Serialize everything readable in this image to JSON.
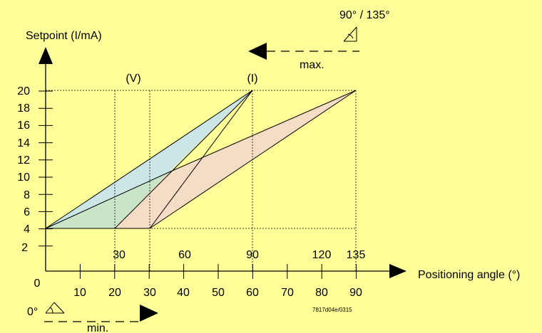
{
  "labels": {
    "y_axis": "Setpoint (I/mA)",
    "x_axis": "Positioning angle (°)",
    "v_marker": "(V)",
    "i_marker": "(I)",
    "max_angle": "90° / 135°",
    "max": "max.",
    "min": "min.",
    "zero_deg": "0°",
    "origin": "0",
    "code": "7817d04e/0315"
  },
  "y_ticks": [
    "2",
    "4",
    "6",
    "8",
    "10",
    "12",
    "14",
    "16",
    "18",
    "20"
  ],
  "x_ticks_lower": [
    "10",
    "20",
    "30",
    "40",
    "50",
    "60",
    "70",
    "80",
    "90"
  ],
  "x_ticks_upper": [
    "30",
    "60",
    "90",
    "120",
    "135"
  ],
  "colors": {
    "background": "#FFFF99",
    "green_region": "#C9E5C8",
    "blue_region": "#CCE6E6",
    "pink_region": "#F5DCC4"
  },
  "chart_data": {
    "type": "area",
    "title": "",
    "ylabel": "Setpoint (I/mA)",
    "xlabel": "Positioning angle (°)",
    "xlim": [
      0,
      90
    ],
    "ylim": [
      0,
      20
    ],
    "series": [
      {
        "name": "(V)",
        "points": [
          [
            0,
            4
          ],
          [
            20,
            4
          ],
          [
            60,
            20
          ]
        ]
      },
      {
        "name": "(I)",
        "points": [
          [
            0,
            4
          ],
          [
            30,
            4
          ],
          [
            60,
            20
          ]
        ]
      },
      {
        "name": "",
        "points": [
          [
            0,
            4
          ],
          [
            20,
            4
          ],
          [
            90,
            20
          ]
        ]
      },
      {
        "name": "",
        "points": [
          [
            0,
            4
          ],
          [
            30,
            4
          ],
          [
            90,
            20
          ]
        ]
      }
    ]
  }
}
